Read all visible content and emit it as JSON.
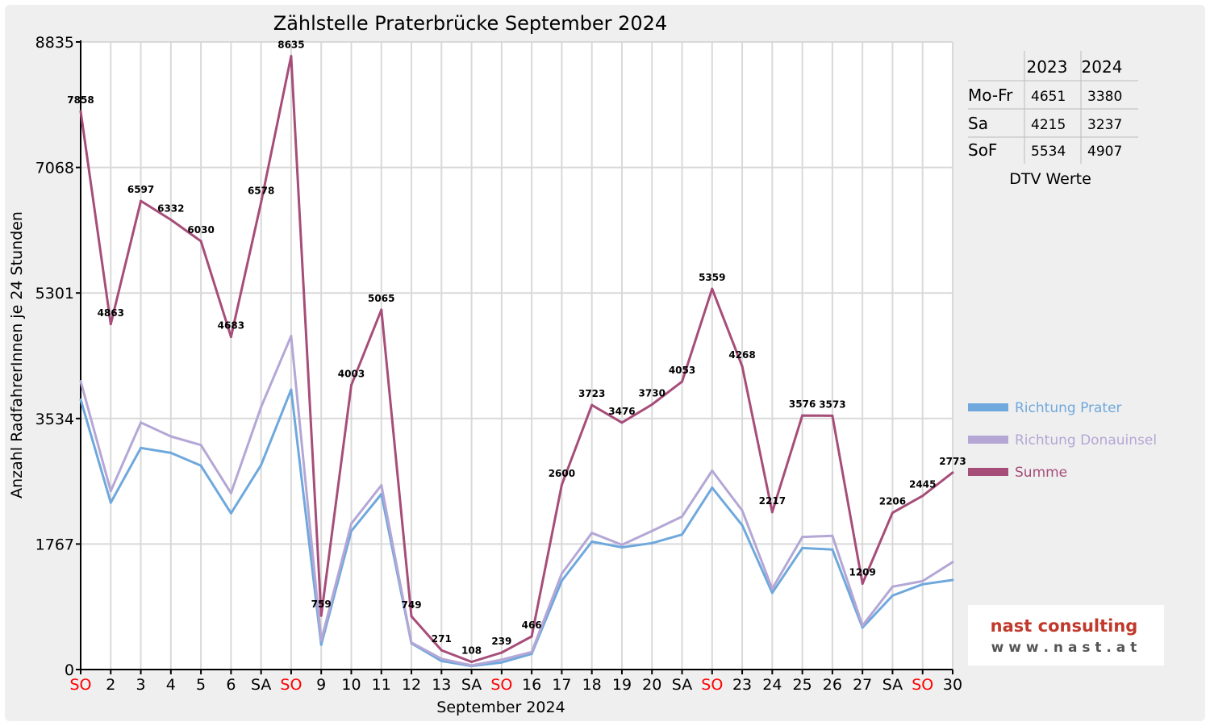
{
  "chart_data": {
    "type": "line",
    "title": "Zählstelle Praterbrücke September 2024",
    "xlabel": "September 2024",
    "ylabel": "Anzahl RadfahrerInnen je 24 Stunden",
    "ylim": [
      0,
      8835
    ],
    "yticks": [
      "0",
      "1767",
      "3534",
      "5301",
      "7068",
      "8835"
    ],
    "grid": true,
    "legend_position": "right",
    "categories": [
      "SO",
      "2",
      "3",
      "4",
      "5",
      "6",
      "SA",
      "SO",
      "9",
      "10",
      "11",
      "12",
      "13",
      "SA",
      "SO",
      "16",
      "17",
      "18",
      "19",
      "20",
      "SA",
      "SO",
      "23",
      "24",
      "25",
      "26",
      "27",
      "SA",
      "SO",
      "30"
    ],
    "red_categories": [
      0,
      7,
      14,
      21,
      28
    ],
    "series": [
      {
        "name": "Richtung Prater",
        "color": "#6fa8dc",
        "values": [
          3800,
          2350,
          3120,
          3050,
          2870,
          2200,
          2880,
          3940,
          350,
          1950,
          2470,
          370,
          120,
          50,
          100,
          220,
          1250,
          1800,
          1720,
          1780,
          1900,
          2560,
          2030,
          1080,
          1710,
          1690,
          590,
          1040,
          1200,
          1260
        ]
      },
      {
        "name": "Richtung Donauinsel",
        "color": "#b4a7d6",
        "values": [
          4058,
          2513,
          3477,
          3282,
          3160,
          2483,
          3698,
          4695,
          409,
          2053,
          2595,
          379,
          151,
          58,
          139,
          246,
          1350,
          1923,
          1756,
          1950,
          2153,
          2799,
          2238,
          1137,
          1866,
          1883,
          619,
          1166,
          1245,
          1513
        ]
      },
      {
        "name": "Summe",
        "color": "#a64d79",
        "values": [
          7858,
          4863,
          6597,
          6332,
          6030,
          4683,
          6578,
          8635,
          759,
          4003,
          5065,
          749,
          271,
          108,
          239,
          466,
          2600,
          3723,
          3476,
          3730,
          4053,
          5359,
          4268,
          2217,
          3576,
          3573,
          1209,
          2206,
          2445,
          2773
        ]
      }
    ],
    "labels": [
      "7858",
      "4863",
      "6597",
      "6332",
      "6030",
      "4683",
      "6578",
      "8635",
      "759",
      "4003",
      "5065",
      "749",
      "271",
      "108",
      "239",
      "466",
      "2600",
      "3723",
      "3476",
      "3730",
      "4053",
      "5359",
      "4268",
      "2217",
      "3576",
      "3573",
      "1209",
      "2206",
      "2445",
      "2773"
    ],
    "dtv_table": {
      "caption": "DTV Werte",
      "columns": [
        "",
        "2023",
        "2024"
      ],
      "rows": [
        [
          "Mo-Fr",
          "4651",
          "3380"
        ],
        [
          "Sa",
          "4215",
          "3237"
        ],
        [
          "SoF",
          "5534",
          "4907"
        ]
      ]
    }
  },
  "logo": {
    "line1": "nast consulting",
    "line2": "w w w . n a s t . a t"
  },
  "colors": {
    "background": "#efefef",
    "plot_background": "#ffffff",
    "grid": "#d9d9d9",
    "axis": "#000000",
    "red_label": "#ff0000",
    "logo_red": "#c0392b",
    "logo_gray": "#555555"
  }
}
